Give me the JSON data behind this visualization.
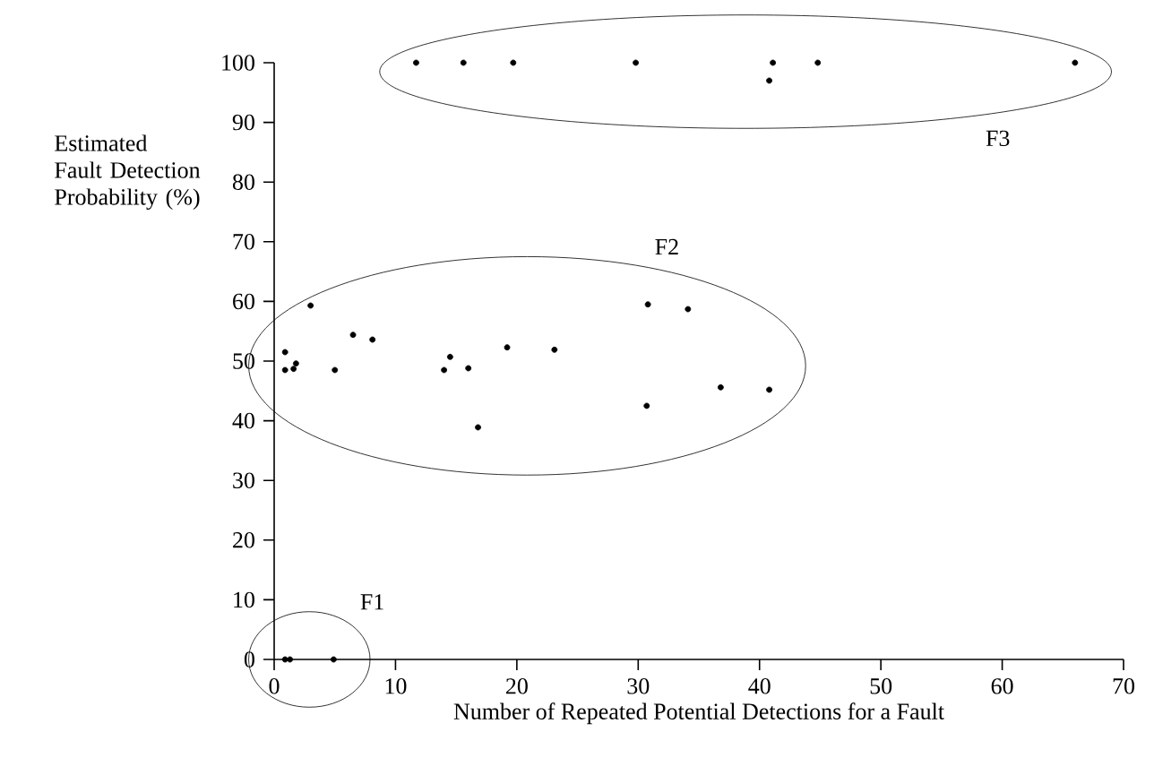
{
  "chart_data": {
    "type": "scatter",
    "xlabel": "Number of Repeated Potential Detections for a Fault",
    "ylabel": "Estimated Fault Detection Probability (%)",
    "xlim": [
      0,
      70
    ],
    "ylim": [
      0,
      100
    ],
    "xticks": [
      0,
      10,
      20,
      30,
      40,
      50,
      60,
      70
    ],
    "yticks": [
      0,
      10,
      20,
      30,
      40,
      50,
      60,
      70,
      80,
      90,
      100
    ],
    "marker": "circle",
    "grid": false,
    "series": [
      {
        "color": "#000000",
        "x": [
          0.9,
          1.3,
          4.9
        ],
        "values": [
          0,
          0,
          0
        ]
      },
      {
        "color": "#000000",
        "x": [
          3.0,
          0.9,
          0.9,
          1.6,
          1.8,
          5.0,
          6.5,
          8.1,
          14.0,
          14.5,
          16.0,
          16.8,
          19.2,
          23.1,
          30.7,
          30.8,
          34.1,
          36.8,
          40.8
        ],
        "values": [
          59.3,
          51.5,
          48.5,
          48.7,
          49.6,
          48.5,
          54.4,
          53.6,
          48.5,
          50.7,
          48.8,
          38.9,
          52.3,
          51.9,
          42.5,
          59.5,
          58.7,
          45.6,
          45.2
        ]
      },
      {
        "color": "#000000",
        "x": [
          11.7,
          15.6,
          19.7,
          29.8,
          40.8,
          41.1,
          44.8,
          66.0
        ],
        "values": [
          100,
          100,
          100,
          100,
          97,
          100,
          100,
          100
        ]
      }
    ],
    "annotations": [
      "F1",
      "F2",
      "F3"
    ]
  }
}
